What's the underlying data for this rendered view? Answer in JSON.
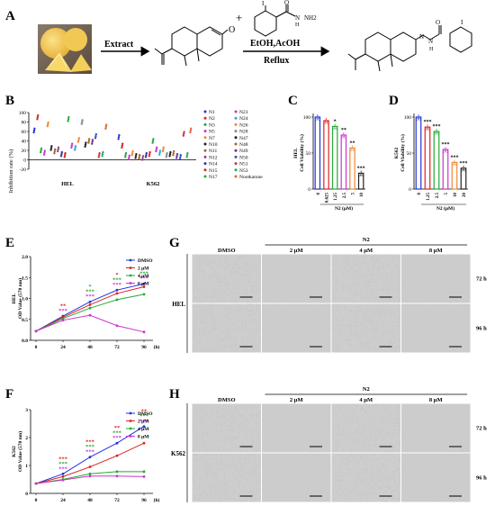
{
  "panels": {
    "A": "A",
    "B": "B",
    "C": "C",
    "D": "D",
    "E": "E",
    "F": "F",
    "G": "G",
    "H": "H"
  },
  "scheme": {
    "arrow1": "Extract",
    "plus": "+",
    "reagent_label": "EtOH,AcOH",
    "condition": "Reflux",
    "oxygen": "O",
    "iodine": "I",
    "hydrazide": "NH2",
    "nh": "N",
    "h": "H"
  },
  "panelB": {
    "ylabel": "Inhibition rate (%)",
    "ylim": [
      -20,
      100
    ],
    "yticks": [
      "100",
      "80",
      "60",
      "40",
      "20",
      "0",
      "-20"
    ],
    "groups": [
      "HEL",
      "K562"
    ],
    "legend": [
      "N1",
      "N2",
      "N3",
      "N5",
      "N7",
      "N10",
      "N11",
      "N12",
      "N14",
      "N15",
      "N17",
      "N23",
      "N24",
      "N26",
      "N28",
      "N47",
      "N48",
      "N49",
      "N50",
      "N51",
      "N53",
      "Nootkatone"
    ],
    "colors": [
      "#2233dd",
      "#dd2222",
      "#22aa33",
      "#cc33cc",
      "#ee8833",
      "#222222",
      "#996633",
      "#884488",
      "#333399",
      "#dd2222",
      "#22aa33",
      "#cc33cc",
      "#33aacc",
      "#ee8833",
      "#888888",
      "#222222",
      "#aa6622",
      "#663399",
      "#3355bb",
      "#cc3344",
      "#22aa66",
      "#dd6644"
    ]
  },
  "chart_data": [
    {
      "panel": "C",
      "type": "bar",
      "xlabel": "N2 (μM)",
      "ylabel": "HEL\nCell Viability (%)",
      "categories": [
        "0",
        "0.625",
        "1.25",
        "2.5",
        "5",
        "10"
      ],
      "values": [
        100,
        95,
        87,
        75,
        57,
        22
      ],
      "colors": [
        "#2233dd",
        "#dd2222",
        "#22aa33",
        "#cc33cc",
        "#ee8833",
        "#222222"
      ],
      "sig": [
        "",
        "",
        "*",
        "**",
        "**",
        "***"
      ],
      "ylim": [
        0,
        100
      ],
      "yticks": [
        "100",
        "50",
        "0"
      ]
    },
    {
      "panel": "D",
      "type": "bar",
      "xlabel": "N2 (μM)",
      "ylabel": "K562\nCell Viability (%)",
      "categories": [
        "0",
        "1.25",
        "2.5",
        "5",
        "10",
        "20"
      ],
      "values": [
        100,
        86,
        80,
        55,
        37,
        29
      ],
      "colors": [
        "#2233dd",
        "#dd2222",
        "#22aa33",
        "#cc33cc",
        "#ee8833",
        "#222222"
      ],
      "sig": [
        "",
        "***",
        "***",
        "***",
        "***",
        "***"
      ],
      "ylim": [
        0,
        100
      ],
      "yticks": [
        "100",
        "50",
        "0"
      ]
    },
    {
      "panel": "E",
      "type": "line",
      "xlabel": "(h)",
      "ylabel": "HEL\nOD Value (570 nm)",
      "x": [
        0,
        24,
        48,
        72,
        96
      ],
      "xticks": [
        "0",
        "24",
        "48",
        "72",
        "96"
      ],
      "ylim": [
        0,
        2.0
      ],
      "yticks": [
        "0.0",
        "0.5",
        "1.0",
        "1.5",
        "2.0"
      ],
      "series": [
        {
          "name": "DMSO",
          "color": "#2233dd",
          "values": [
            0.22,
            0.58,
            0.92,
            1.2,
            1.35
          ]
        },
        {
          "name": "2 μM",
          "color": "#dd2222",
          "values": [
            0.22,
            0.55,
            0.85,
            1.12,
            1.28
          ]
        },
        {
          "name": "4 μM",
          "color": "#22aa33",
          "values": [
            0.22,
            0.52,
            0.77,
            0.97,
            1.1
          ]
        },
        {
          "name": "8 μM",
          "color": "#cc33cc",
          "values": [
            0.22,
            0.48,
            0.6,
            0.35,
            0.2
          ]
        }
      ]
    },
    {
      "panel": "F",
      "type": "line",
      "xlabel": "(h)",
      "ylabel": "K562\nOD Value (570 nm)",
      "x": [
        0,
        24,
        48,
        72,
        96
      ],
      "xticks": [
        "0",
        "24",
        "48",
        "72",
        "96"
      ],
      "ylim": [
        0,
        3
      ],
      "yticks": [
        "0",
        "1",
        "2",
        "3"
      ],
      "series": [
        {
          "name": "DMSO",
          "color": "#2233dd",
          "values": [
            0.35,
            0.7,
            1.3,
            1.8,
            2.4
          ]
        },
        {
          "name": "2 μM",
          "color": "#dd2222",
          "values": [
            0.35,
            0.6,
            0.95,
            1.35,
            1.8
          ]
        },
        {
          "name": "4 μM",
          "color": "#22aa33",
          "values": [
            0.35,
            0.5,
            0.7,
            0.78,
            0.78
          ]
        },
        {
          "name": "8 μM",
          "color": "#cc33cc",
          "values": [
            0.35,
            0.48,
            0.62,
            0.62,
            0.6
          ]
        }
      ]
    }
  ],
  "lineSig": {
    "E": [
      {
        "x": 24,
        "marks": [
          {
            "t": "**",
            "c": "#dd2222"
          },
          {
            "t": "***",
            "c": "#cc33cc"
          }
        ]
      },
      {
        "x": 48,
        "marks": [
          {
            "t": "*",
            "c": "#22aa33"
          },
          {
            "t": "***",
            "c": "#22aa33"
          },
          {
            "t": "***",
            "c": "#cc33cc"
          }
        ]
      },
      {
        "x": 72,
        "marks": [
          {
            "t": "*",
            "c": "#dd2222"
          },
          {
            "t": "***",
            "c": "#22aa33"
          },
          {
            "t": "***",
            "c": "#cc33cc"
          }
        ]
      },
      {
        "x": 96,
        "marks": [
          {
            "t": "***",
            "c": "#22aa33"
          },
          {
            "t": "***",
            "c": "#cc33cc"
          }
        ]
      }
    ],
    "F": [
      {
        "x": 24,
        "marks": [
          {
            "t": "***",
            "c": "#dd2222"
          },
          {
            "t": "***",
            "c": "#22aa33"
          },
          {
            "t": "***",
            "c": "#cc33cc"
          }
        ]
      },
      {
        "x": 48,
        "marks": [
          {
            "t": "***",
            "c": "#dd2222"
          },
          {
            "t": "***",
            "c": "#22aa33"
          },
          {
            "t": "***",
            "c": "#cc33cc"
          }
        ]
      },
      {
        "x": 72,
        "marks": [
          {
            "t": "**",
            "c": "#dd2222"
          },
          {
            "t": "***",
            "c": "#22aa33"
          },
          {
            "t": "***",
            "c": "#cc33cc"
          }
        ]
      },
      {
        "x": 96,
        "marks": [
          {
            "t": "**",
            "c": "#dd2222"
          },
          {
            "t": "***",
            "c": "#22aa33"
          },
          {
            "t": "***",
            "c": "#cc33cc"
          }
        ]
      }
    ]
  },
  "microscopy": {
    "treatment": "N2",
    "columns": [
      "DMSO",
      "2 μM",
      "4 μM",
      "8 μM"
    ],
    "rows": [
      "72 h",
      "96 h"
    ],
    "G_cell": "HEL",
    "H_cell": "K562"
  }
}
